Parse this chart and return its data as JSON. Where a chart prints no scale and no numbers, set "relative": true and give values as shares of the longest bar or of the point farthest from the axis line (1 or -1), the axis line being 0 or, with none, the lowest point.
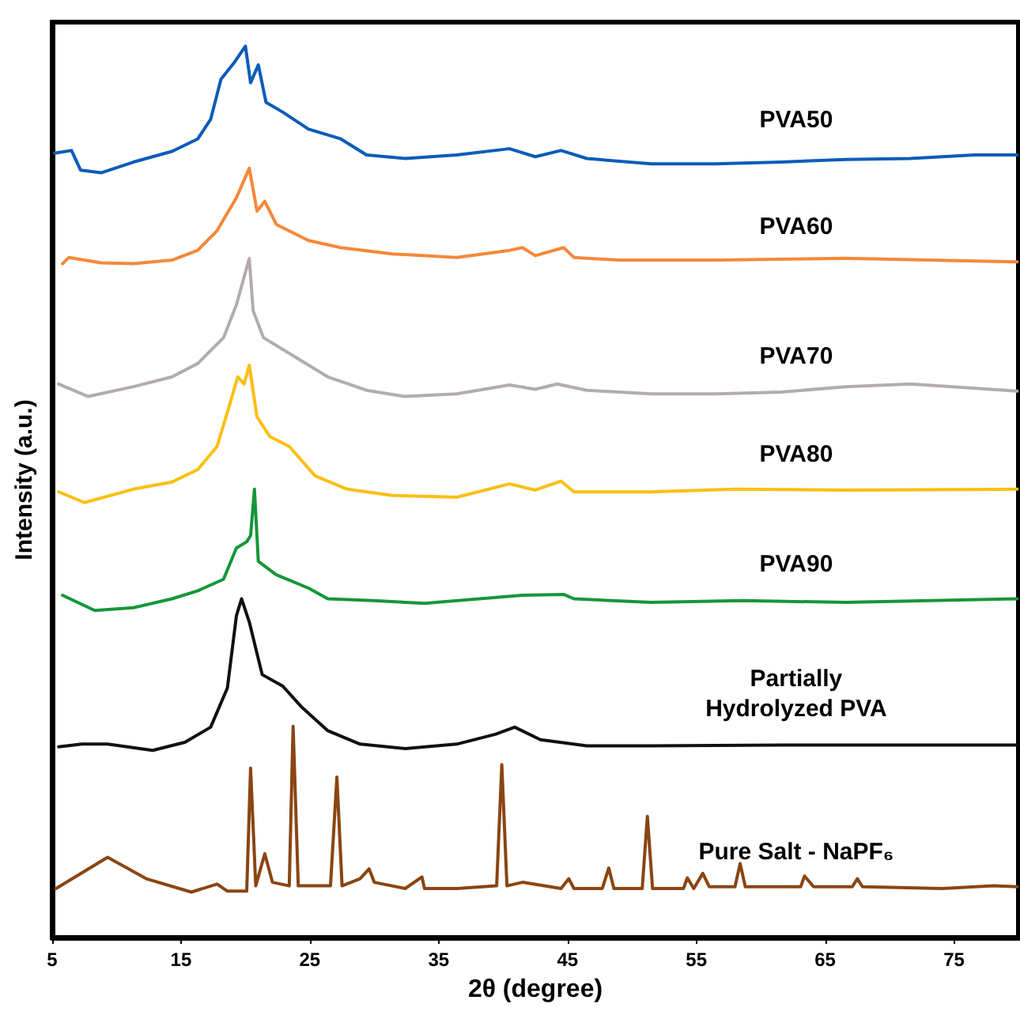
{
  "chart_data": {
    "type": "line",
    "relative": true,
    "xlabel": "2θ (degree)",
    "ylabel": "Intensity (a.u.)",
    "xlim": [
      5,
      80
    ],
    "xticks": [
      5,
      15,
      25,
      35,
      45,
      55,
      65,
      75
    ],
    "legend": false,
    "grid": false,
    "marker": "none",
    "series": [
      {
        "name": "PVA50",
        "color": "#0b5cb8",
        "x": [
          5.2,
          6.5,
          7.2,
          8.8,
          11.3,
          14.3,
          16.3,
          17.3,
          18.1,
          19.1,
          20.0,
          20.4,
          21.0,
          21.6,
          22.9,
          24.9,
          27.4,
          29.4,
          32.4,
          36.4,
          40.5,
          42.5,
          44.5,
          46.5,
          51.5,
          56.5,
          61.6,
          66.6,
          71.6,
          76.6,
          79.9
        ],
        "values": [
          0.88,
          0.883,
          0.861,
          0.858,
          0.87,
          0.882,
          0.896,
          0.918,
          0.963,
          0.981,
          1.0,
          0.959,
          0.979,
          0.937,
          0.926,
          0.907,
          0.896,
          0.878,
          0.874,
          0.878,
          0.885,
          0.876,
          0.883,
          0.874,
          0.868,
          0.868,
          0.87,
          0.873,
          0.874,
          0.878,
          0.878
        ]
      },
      {
        "name": "PVA60",
        "color": "#f5883a",
        "x": [
          5.8,
          6.3,
          8.8,
          11.3,
          14.3,
          16.3,
          17.8,
          19.3,
          20.3,
          20.9,
          21.5,
          22.4,
          24.9,
          27.4,
          31.4,
          36.4,
          40.5,
          41.5,
          42.5,
          44.7,
          45.5,
          49.0,
          56.5,
          66.6,
          79.9
        ],
        "values": [
          0.756,
          0.763,
          0.757,
          0.756,
          0.76,
          0.771,
          0.793,
          0.83,
          0.863,
          0.815,
          0.826,
          0.8,
          0.782,
          0.774,
          0.767,
          0.763,
          0.771,
          0.774,
          0.765,
          0.774,
          0.763,
          0.76,
          0.76,
          0.762,
          0.758
        ]
      },
      {
        "name": "PVA70",
        "color": "#b2adab",
        "x": [
          5.5,
          7.8,
          11.3,
          14.3,
          16.3,
          18.3,
          19.3,
          20.3,
          20.6,
          21.4,
          23.9,
          26.4,
          29.4,
          32.4,
          36.4,
          40.5,
          42.5,
          44.2,
          46.5,
          51.5,
          56.5,
          61.6,
          66.6,
          71.6,
          79.9
        ],
        "values": [
          0.621,
          0.607,
          0.618,
          0.629,
          0.644,
          0.673,
          0.71,
          0.762,
          0.703,
          0.673,
          0.651,
          0.629,
          0.614,
          0.607,
          0.61,
          0.62,
          0.615,
          0.621,
          0.614,
          0.61,
          0.61,
          0.612,
          0.618,
          0.621,
          0.613
        ]
      },
      {
        "name": "PVA80",
        "color": "#fbbf14",
        "x": [
          5.5,
          7.5,
          11.3,
          14.3,
          16.3,
          17.8,
          18.8,
          19.4,
          19.9,
          20.3,
          20.9,
          21.9,
          23.4,
          25.4,
          27.9,
          31.4,
          36.4,
          40.5,
          42.5,
          44.5,
          45.5,
          51.5,
          58.0,
          66.6,
          79.9
        ],
        "values": [
          0.5,
          0.488,
          0.503,
          0.511,
          0.525,
          0.551,
          0.599,
          0.629,
          0.621,
          0.642,
          0.584,
          0.562,
          0.551,
          0.518,
          0.503,
          0.496,
          0.494,
          0.509,
          0.502,
          0.512,
          0.5,
          0.5,
          0.503,
          0.502,
          0.503
        ]
      },
      {
        "name": "PVA90",
        "color": "#16963a",
        "x": [
          5.8,
          8.3,
          11.3,
          14.3,
          16.3,
          18.3,
          19.3,
          20.1,
          20.4,
          20.7,
          21.0,
          22.4,
          24.9,
          26.4,
          29.9,
          33.9,
          41.5,
          44.7,
          45.5,
          51.5,
          58.6,
          66.6,
          79.9
        ],
        "values": [
          0.384,
          0.367,
          0.37,
          0.38,
          0.389,
          0.402,
          0.437,
          0.444,
          0.451,
          0.503,
          0.422,
          0.407,
          0.392,
          0.38,
          0.378,
          0.375,
          0.384,
          0.385,
          0.38,
          0.376,
          0.378,
          0.376,
          0.38
        ]
      },
      {
        "name": "Partially Hydrolyzed PVA",
        "color": "#111111",
        "x": [
          5.5,
          7.3,
          9.3,
          12.8,
          15.3,
          17.3,
          18.6,
          19.3,
          19.7,
          20.3,
          21.3,
          22.9,
          24.4,
          26.4,
          28.9,
          32.4,
          36.4,
          39.4,
          40.9,
          42.9,
          46.5,
          51.5,
          61.6,
          71.6,
          79.9
        ],
        "values": [
          0.214,
          0.217,
          0.217,
          0.21,
          0.219,
          0.236,
          0.28,
          0.361,
          0.38,
          0.354,
          0.295,
          0.282,
          0.258,
          0.232,
          0.217,
          0.212,
          0.217,
          0.228,
          0.236,
          0.222,
          0.215,
          0.215,
          0.216,
          0.216,
          0.216
        ]
      },
      {
        "name": "Pure Salt - NaPF₆",
        "color": "#8a4512",
        "x": [
          5.3,
          9.3,
          12.3,
          15.8,
          17.8,
          18.6,
          20.1,
          20.4,
          20.8,
          21.5,
          22.1,
          23.4,
          23.7,
          24.1,
          26.6,
          27.1,
          27.5,
          28.9,
          29.6,
          30.0,
          32.4,
          33.7,
          33.9,
          36.4,
          39.5,
          39.9,
          40.3,
          41.5,
          44.5,
          45.1,
          45.5,
          47.7,
          48.2,
          48.6,
          50.8,
          51.2,
          51.6,
          54.0,
          54.3,
          54.8,
          55.5,
          56.0,
          58.0,
          58.4,
          58.8,
          63.1,
          63.4,
          64.1,
          67.1,
          67.5,
          67.9,
          74.1,
          78.1,
          79.9
        ],
        "values": [
          0.055,
          0.09,
          0.066,
          0.051,
          0.06,
          0.052,
          0.052,
          0.19,
          0.058,
          0.094,
          0.062,
          0.058,
          0.237,
          0.058,
          0.058,
          0.18,
          0.058,
          0.066,
          0.077,
          0.062,
          0.055,
          0.068,
          0.055,
          0.055,
          0.058,
          0.194,
          0.058,
          0.062,
          0.055,
          0.066,
          0.055,
          0.055,
          0.078,
          0.055,
          0.055,
          0.136,
          0.055,
          0.055,
          0.067,
          0.055,
          0.072,
          0.057,
          0.057,
          0.083,
          0.057,
          0.057,
          0.069,
          0.057,
          0.057,
          0.066,
          0.057,
          0.055,
          0.058,
          0.057
        ]
      }
    ]
  }
}
